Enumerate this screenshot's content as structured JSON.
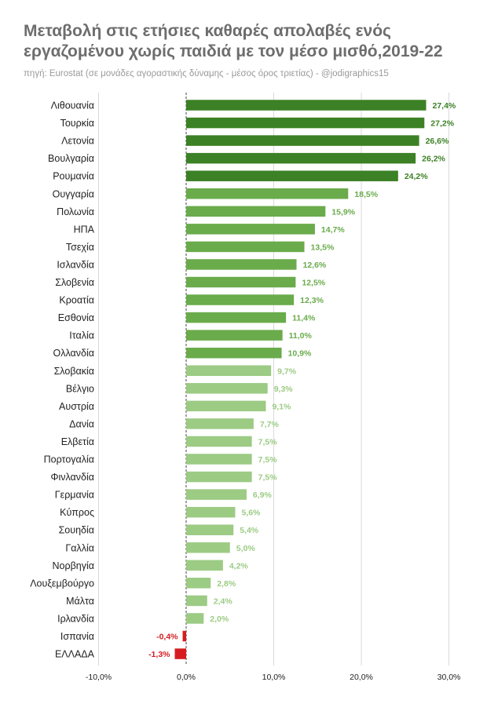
{
  "title": "Μεταβολή στις ετήσιες καθαρές απολαβές ενός εργαζομένου χωρίς παιδιά με τον μέσο μισθό,2019-22",
  "subtitle": "πηγή: Eurostat (σε μονάδες αγοραστικής δύναμης - μέσος όρος τριετίας) - @jodigraphics15",
  "colors": {
    "dark_green": "#3c8125",
    "mid_green": "#6aab4b",
    "light_green": "#9ccb84",
    "negative_red": "#d61c20",
    "grid": "#d9d9d9"
  },
  "chart_data": {
    "type": "bar",
    "orientation": "horizontal",
    "title": "Μεταβολή στις ετήσιες καθαρές απολαβές ενός εργαζομένου χωρίς παιδιά με τον μέσο μισθό,2019-22",
    "xlim": [
      -10,
      30
    ],
    "xticks": [
      -10,
      0,
      10,
      20,
      30
    ],
    "xtick_labels": [
      "-10,0%",
      "0,0%",
      "10,0%",
      "20,0%",
      "30,0%"
    ],
    "grid": true,
    "categories": [
      "Λιθουανία",
      "Τουρκία",
      "Λετονία",
      "Βουλγαρία",
      "Ρουμανία",
      "Ουγγαρία",
      "Πολωνία",
      "ΗΠΑ",
      "Τσεχία",
      "Ισλανδία",
      "Σλοβενία",
      "Κροατία",
      "Εσθονία",
      "Ιταλία",
      "Ολλανδία",
      "Σλοβακία",
      "Βέλγιο",
      "Αυστρία",
      "Δανία",
      "Ελβετία",
      "Πορτογαλία",
      "Φινλανδία",
      "Γερμανία",
      "Κύπρος",
      "Σουηδία",
      "Γαλλία",
      "Νορβηγία",
      "Λουξεμβούργο",
      "Μάλτα",
      "Ιρλανδία",
      "Ισπανία",
      "ΕΛΛΑΔΑ"
    ],
    "values": [
      27.4,
      27.2,
      26.6,
      26.2,
      24.2,
      18.5,
      15.9,
      14.7,
      13.5,
      12.6,
      12.5,
      12.3,
      11.4,
      11.0,
      10.9,
      9.7,
      9.3,
      9.1,
      7.7,
      7.5,
      7.5,
      7.5,
      6.9,
      5.6,
      5.4,
      5.0,
      4.2,
      2.8,
      2.4,
      2.0,
      -0.4,
      -1.3
    ],
    "labels": [
      "27,4%",
      "27,2%",
      "26,6%",
      "26,2%",
      "24,2%",
      "18,5%",
      "15,9%",
      "14,7%",
      "13,5%",
      "12,6%",
      "12,5%",
      "12,3%",
      "11,4%",
      "11,0%",
      "10,9%",
      "9,7%",
      "9,3%",
      "9,1%",
      "7,7%",
      "7,5%",
      "7,5%",
      "7,5%",
      "6,9%",
      "5,6%",
      "5,4%",
      "5,0%",
      "4,2%",
      "2,8%",
      "2,4%",
      "2,0%",
      "-0,4%",
      "-1,3%"
    ]
  }
}
